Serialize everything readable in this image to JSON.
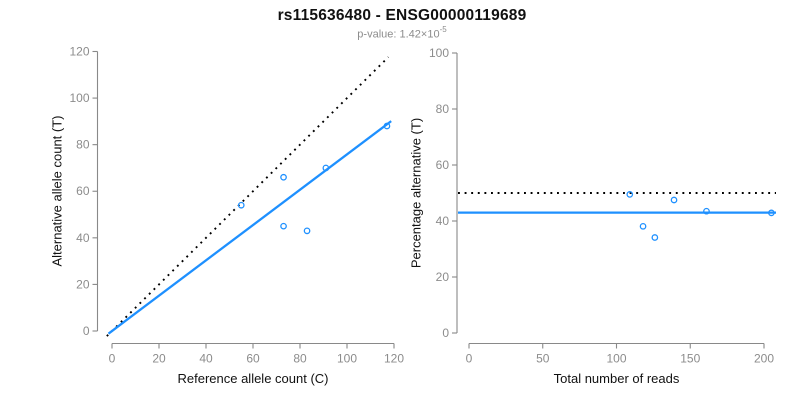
{
  "header": {
    "title": "rs115636480 - ENSG00000119689",
    "subtitle_prefix": "p-value: 1.42×10",
    "subtitle_exponent": "-5"
  },
  "colors": {
    "accent_blue": "#1E90FF",
    "dotted_black": "#000000",
    "axis_gray": "#898989",
    "tick_label_gray": "#8c8c8c",
    "text_black": "#111111",
    "subtitle_gray": "#8c8c8c",
    "background": "#ffffff"
  },
  "chart_data": [
    {
      "type": "scatter",
      "name": "allele-counts-scatter",
      "xlabel": "Reference allele count (C)",
      "ylabel": "Alternative allele count (T)",
      "xlim": [
        0,
        120
      ],
      "ylim": [
        0,
        120
      ],
      "xticks": [
        0,
        20,
        40,
        60,
        80,
        100,
        120
      ],
      "yticks": [
        0,
        20,
        40,
        60,
        80,
        100,
        120
      ],
      "grid": false,
      "legend": null,
      "points": [
        [
          55,
          54
        ],
        [
          73,
          45
        ],
        [
          73,
          66
        ],
        [
          83,
          43
        ],
        [
          91,
          70
        ],
        [
          117,
          88
        ]
      ],
      "lines": [
        {
          "name": "identity-line",
          "style": "dotted",
          "color": "black",
          "slope": 1,
          "intercept": 0,
          "x1": -2.2,
          "y1": -2.2,
          "x2": 117.6,
          "y2": 117.6
        },
        {
          "name": "regression-line",
          "style": "solid",
          "color": "blue",
          "slope": 0.759,
          "intercept": 0,
          "x1": -1.5,
          "y1": -1.14,
          "x2": 118.8,
          "y2": 90.1
        }
      ]
    },
    {
      "type": "scatter",
      "name": "percentage-vs-coverage-scatter",
      "xlabel": "Total number of reads",
      "ylabel": "Percentage alternative (T)",
      "xlim": [
        0,
        200
      ],
      "ylim": [
        0,
        100
      ],
      "xticks": [
        0,
        50,
        100,
        150,
        200
      ],
      "yticks": [
        0,
        20,
        40,
        60,
        80,
        100
      ],
      "grid": false,
      "legend": null,
      "points": [
        [
          109,
          49.5
        ],
        [
          118,
          38.1
        ],
        [
          126,
          34.1
        ],
        [
          139,
          47.5
        ],
        [
          161,
          43.5
        ],
        [
          205,
          42.9
        ]
      ],
      "lines": [
        {
          "name": "expected-50pct-line",
          "style": "dotted",
          "color": "black",
          "y": 50
        },
        {
          "name": "fitted-percentage-line",
          "style": "solid",
          "color": "blue",
          "y": 43
        }
      ]
    }
  ]
}
